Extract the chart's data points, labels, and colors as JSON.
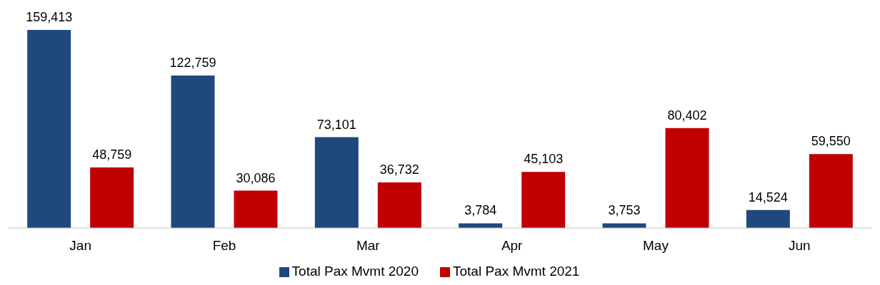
{
  "chart_data": {
    "type": "bar",
    "categories": [
      "Jan",
      "Feb",
      "Mar",
      "Apr",
      "May",
      "Jun"
    ],
    "series": [
      {
        "name": "Total Pax Mvmt 2020",
        "color": "#1f497d",
        "values": [
          159413,
          122759,
          73101,
          3784,
          3753,
          14524
        ],
        "value_labels": [
          "159,413",
          "122,759",
          "73,101",
          "3,784",
          "3,753",
          "14,524"
        ]
      },
      {
        "name": "Total Pax Mvmt 2021",
        "color": "#c00000",
        "values": [
          48759,
          30086,
          36732,
          45103,
          80402,
          59550
        ],
        "value_labels": [
          "48,759",
          "30,086",
          "36,732",
          "45,103",
          "80,402",
          "59,550"
        ]
      }
    ],
    "legend": "bottom"
  }
}
